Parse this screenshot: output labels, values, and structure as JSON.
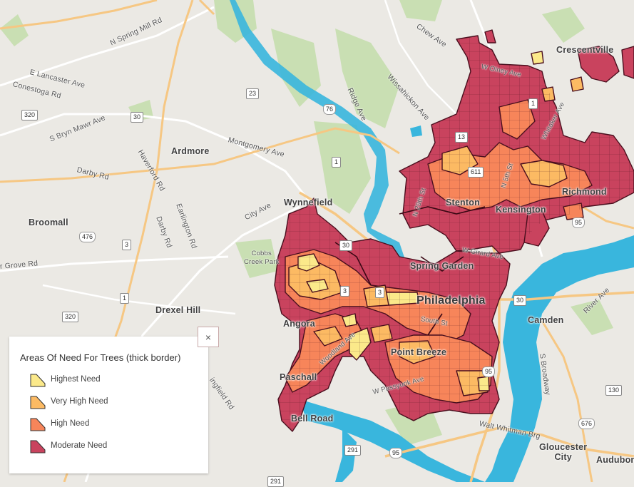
{
  "map": {
    "places": {
      "crescentville": "Crescentville",
      "ardmore": "Ardmore",
      "wynnefield": "Wynnefield",
      "broomall": "Broomall",
      "cobbs_creek_park": "Cobbs\nCreek Park",
      "drexel_hill": "Drexel Hill",
      "spring_garden": "Spring Garden",
      "philadelphia": "Philadelphia",
      "camden": "Camden",
      "stenton": "Stenton",
      "kensington": "Kensington",
      "richmond": "Richmond",
      "angora": "Angora",
      "point_breeze": "Point Breeze",
      "paschall": "Paschall",
      "bell_road": "Bell Road",
      "gloucester_city": "Gloucester\nCity",
      "audubon": "Audubon"
    },
    "roads": {
      "n_spring_mill": "N Spring Mill Rd",
      "e_lancaster": "E Lancaster Ave",
      "conestoga": "Conestoga Rd",
      "s_bryn_mawr": "S Bryn Mawr Ave",
      "darby": "Darby Rd",
      "haverford": "Haverford Rd",
      "montgomery": "Montgomery Ave",
      "earlington": "Earlington Rd",
      "darby_rd2": "Darby Rd",
      "city_ave": "City Ave",
      "ridge": "Ridge Ave",
      "wissahickon": "Wissahickon Ave",
      "chew": "Chew Ave",
      "w_olney": "W Olney Ave",
      "whitaker": "Whitaker Ave",
      "n_29th": "N 29th St",
      "n_5th": "N 5th St",
      "w_girard": "W Girard Ave",
      "south_st": "South St",
      "w_passyunk": "W Passyunk Ave",
      "woodland": "Woodland Ave",
      "walt_whitman": "Walt Whitman Brg",
      "s_broadway": "S Broadway",
      "river_ave": "River Ave",
      "grove_rd": "r Grove Rd",
      "ingfield": "ingfield Rd"
    },
    "shields": {
      "r30a": "30",
      "r23": "23",
      "r76": "76",
      "r320a": "320",
      "r1a": "1",
      "r13": "13",
      "r611": "611",
      "r476": "476",
      "r3a": "3",
      "r1b": "1",
      "r320b": "320",
      "r30b": "30",
      "r3b": "3",
      "r3c": "3",
      "r95a": "95",
      "r30c": "30",
      "r95b": "95",
      "r130": "130",
      "r676": "676",
      "r291": "291",
      "r95c": "95",
      "r1c": "1",
      "r291b": "291"
    }
  },
  "legend": {
    "title": "Areas Of Need For Trees (thick border)",
    "items": [
      {
        "label": "Highest Need",
        "color": "#fbe98a"
      },
      {
        "label": "Very High Need",
        "color": "#fcba63"
      },
      {
        "label": "High Need",
        "color": "#f7855a"
      },
      {
        "label": "Moderate Need",
        "color": "#c9435e"
      }
    ]
  },
  "close_button": {
    "label": "×",
    "icon": "close-icon"
  },
  "colors": {
    "water": "#39b6dd",
    "park": "#c9dfb3",
    "background": "#ebe9e4",
    "highway": "#f6c783",
    "boundary": "#4a0f1e"
  }
}
